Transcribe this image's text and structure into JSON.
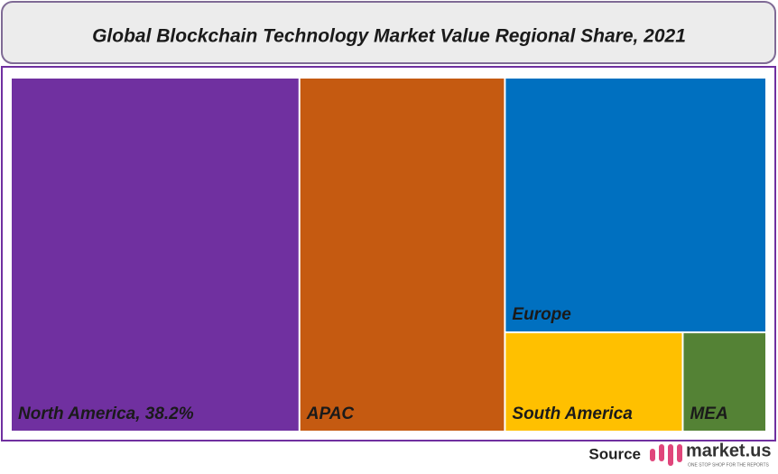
{
  "chart_data": {
    "type": "treemap",
    "title": "Global Blockchain Technology Market Value Regional Share, 2021",
    "categories": [
      "North America, 38.2%",
      "APAC",
      "Europe",
      "South America",
      "MEA"
    ],
    "values": [
      38.2,
      27.2,
      24.9,
      6.6,
      3.1
    ],
    "colors": [
      "#7030a0",
      "#c55a11",
      "#0070c0",
      "#ffc000",
      "#548235"
    ]
  },
  "footer": {
    "source": "Source",
    "logo": "market.us",
    "tagline": "ONE STOP SHOP FOR THE REPORTS"
  }
}
